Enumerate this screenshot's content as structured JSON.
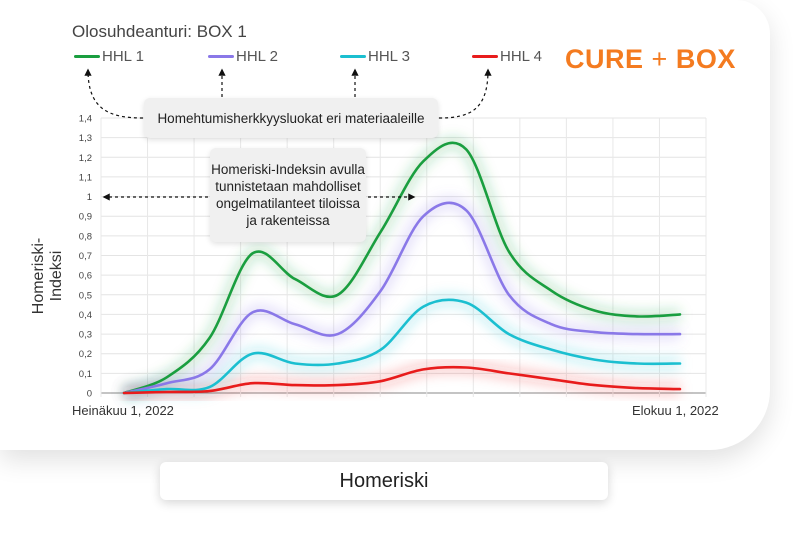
{
  "header": {
    "title": "Olosuhdeanturi: BOX 1",
    "brand_left": "CURE",
    "brand_plus": "+",
    "brand_right": "BOX"
  },
  "annotations": {
    "legend_note": "Homehtumisherkkyysluokat eri materiaaleille",
    "index_note": "Homeriski-Indeksin avulla tunnistetaan mahdolliset ongelmatilanteet tiloissa ja rakenteissa"
  },
  "caption": "Homeriski",
  "chart_data": {
    "type": "line",
    "title": "Olosuhdeanturi: BOX 1",
    "ylabel": "Homeriski-Indeksi",
    "xlabel": "",
    "ylim": [
      0,
      1.4
    ],
    "yticks": [
      "0",
      "0,1",
      "0,2",
      "0,3",
      "0,4",
      "0,5",
      "0,6",
      "0,7",
      "0,8",
      "0,9",
      "1",
      "1,1",
      "1,2",
      "1,3",
      "1,4"
    ],
    "xtick_labels": [
      "Heinäkuu 1, 2022",
      "Elokuu 1, 2022"
    ],
    "x": [
      0,
      1,
      2,
      3,
      4,
      5,
      6,
      7,
      8,
      9,
      10,
      11,
      12,
      13
    ],
    "grid": true,
    "legend_position": "top",
    "series": [
      {
        "name": "HHL 1",
        "color": "#1a9e3f",
        "values": [
          0,
          0.08,
          0.28,
          0.71,
          0.58,
          0.5,
          0.82,
          1.18,
          1.24,
          0.72,
          0.52,
          0.42,
          0.39,
          0.4
        ]
      },
      {
        "name": "HHL 2",
        "color": "#8a78e8",
        "values": [
          0,
          0.05,
          0.12,
          0.41,
          0.35,
          0.3,
          0.52,
          0.9,
          0.93,
          0.5,
          0.35,
          0.31,
          0.3,
          0.3
        ]
      },
      {
        "name": "HHL 3",
        "color": "#1bbfd0",
        "values": [
          0,
          0.02,
          0.03,
          0.2,
          0.15,
          0.15,
          0.22,
          0.44,
          0.46,
          0.3,
          0.22,
          0.17,
          0.15,
          0.15
        ]
      },
      {
        "name": "HHL 4",
        "color": "#e81c1c",
        "values": [
          0,
          0.005,
          0.01,
          0.05,
          0.04,
          0.04,
          0.06,
          0.12,
          0.13,
          0.1,
          0.07,
          0.04,
          0.025,
          0.02
        ]
      }
    ]
  }
}
